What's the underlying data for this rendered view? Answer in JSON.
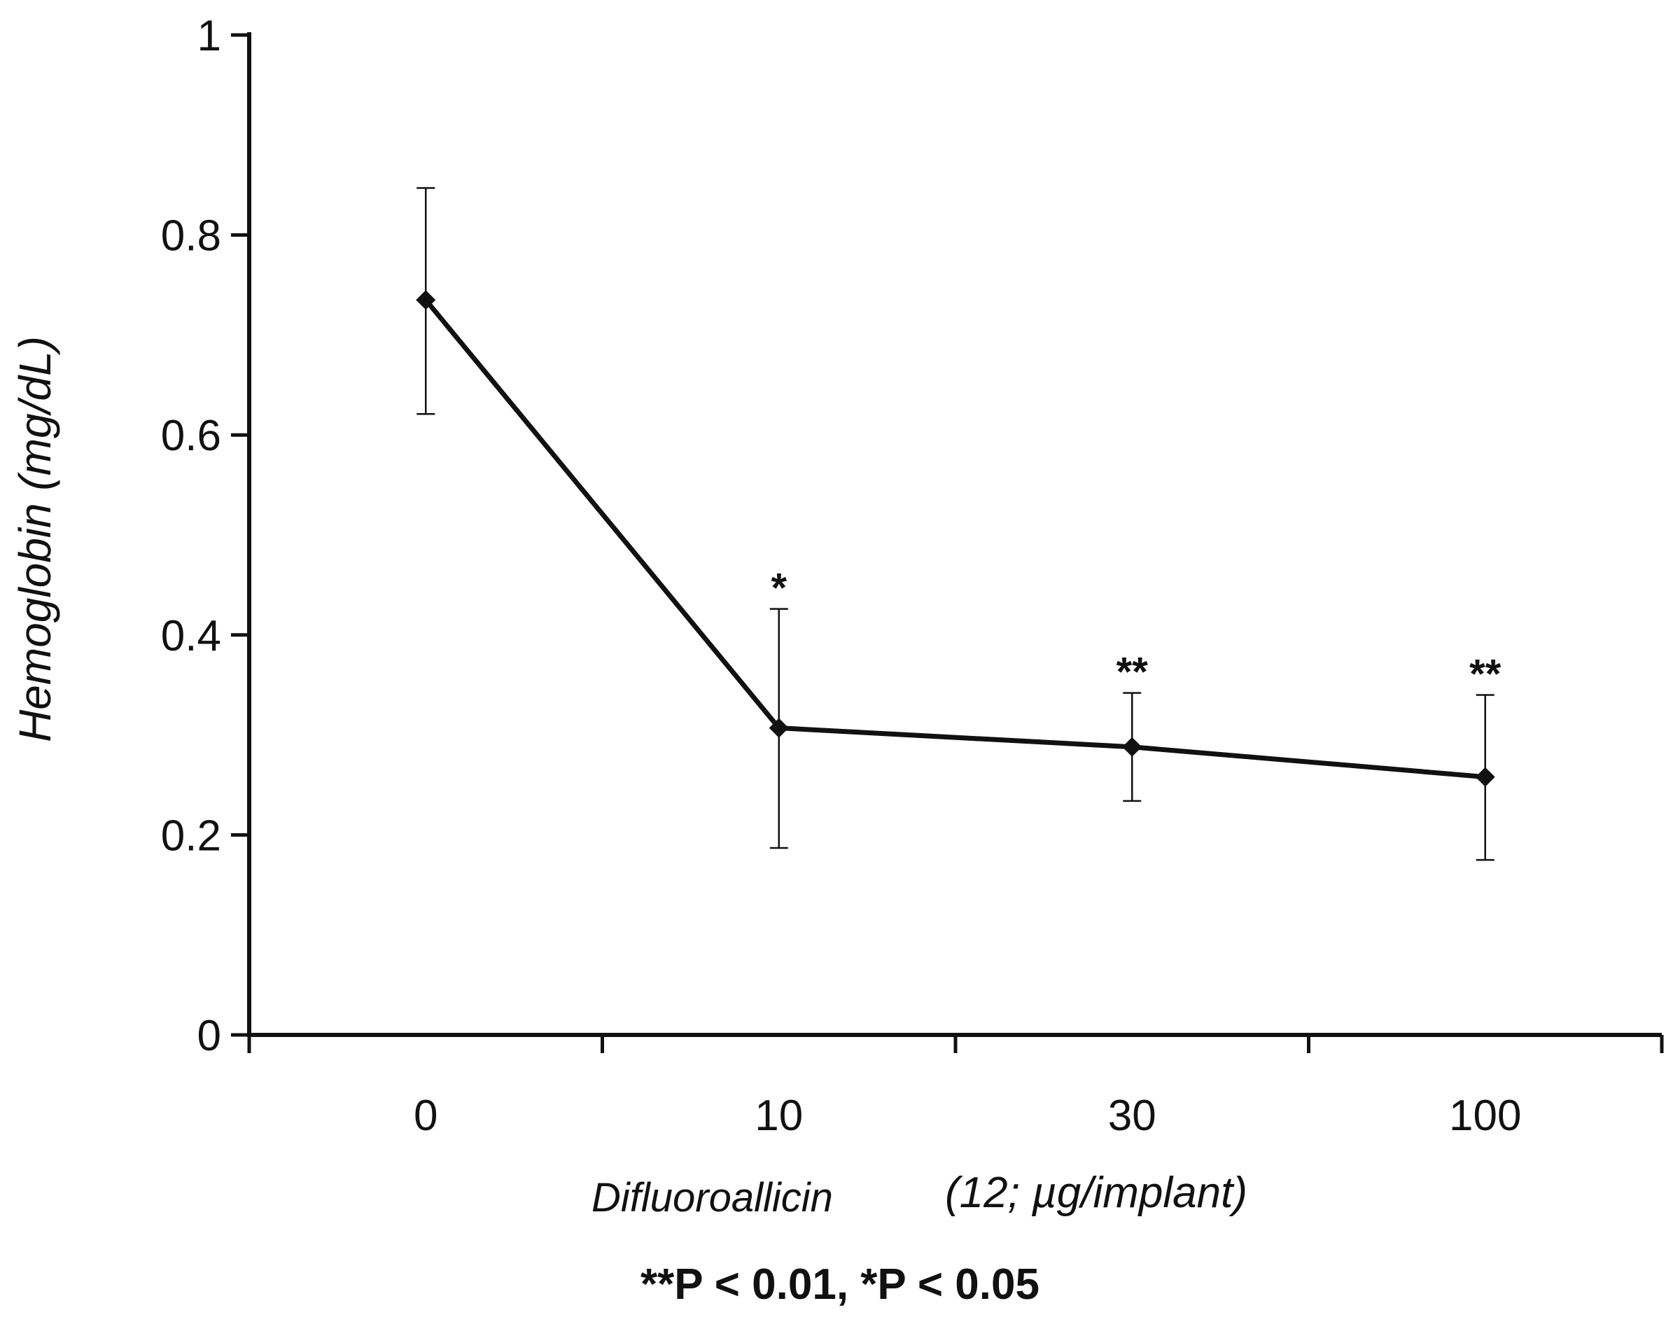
{
  "chart_data": {
    "type": "line",
    "xlabel": "Difluoroallicin",
    "xlabel_unit": "(12; µg/implant)",
    "ylabel": "Hemoglobin (mg/dL)",
    "categories": [
      "0",
      "10",
      "30",
      "100"
    ],
    "series": [
      {
        "values": [
          0.735,
          0.307,
          0.288,
          0.258
        ],
        "error_upper": [
          0.847,
          0.426,
          0.342,
          0.34
        ],
        "error_lower": [
          0.621,
          0.187,
          0.234,
          0.175
        ],
        "significance": [
          "",
          "*",
          "**",
          "**"
        ],
        "marker": "diamond",
        "color": "#111111"
      }
    ],
    "ylim": [
      0,
      1
    ],
    "yticks": [
      "0",
      "0.2",
      "0.4",
      "0.6",
      "0.8",
      "1"
    ],
    "grid": false,
    "legend": "none",
    "footnote": "**P < 0.01, *P < 0.05"
  }
}
